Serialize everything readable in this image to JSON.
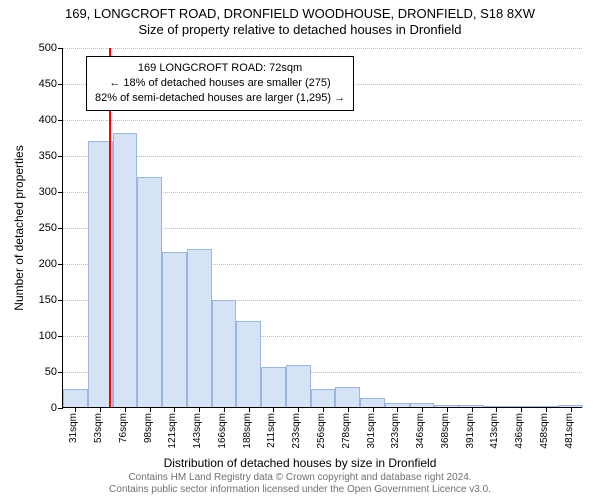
{
  "title_line1": "169, LONGCROFT ROAD, DRONFIELD WOODHOUSE, DRONFIELD, S18 8XW",
  "title_line2": "Size of property relative to detached houses in Dronfield",
  "y_axis_label": "Number of detached properties",
  "x_axis_label": "Distribution of detached houses by size in Dronfield",
  "footnote_line1": "Contains HM Land Registry data © Crown copyright and database right 2024.",
  "footnote_line2": "Contains public sector information licensed under the Open Government Licence v3.0.",
  "chart": {
    "type": "histogram",
    "ylim": [
      0,
      500
    ],
    "ytick_step": 50,
    "y_ticks": [
      0,
      50,
      100,
      150,
      200,
      250,
      300,
      350,
      400,
      450,
      500
    ],
    "x_tick_labels": [
      "31sqm",
      "53sqm",
      "76sqm",
      "98sqm",
      "121sqm",
      "143sqm",
      "166sqm",
      "188sqm",
      "211sqm",
      "233sqm",
      "256sqm",
      "278sqm",
      "301sqm",
      "323sqm",
      "346sqm",
      "368sqm",
      "391sqm",
      "413sqm",
      "436sqm",
      "458sqm",
      "481sqm"
    ],
    "values": [
      25,
      370,
      380,
      320,
      215,
      220,
      148,
      120,
      55,
      58,
      25,
      28,
      12,
      6,
      6,
      3,
      3,
      0,
      0,
      0,
      3
    ],
    "bar_fill": "#d6e2f5",
    "bar_stroke": "#9cb6de",
    "grid_color": "#bfbfbf",
    "background_color": "#ffffff",
    "bar_width_ratio": 1.0,
    "marker": {
      "bin_index": 1,
      "fraction_in_bin": 0.86,
      "color": "#ff0000"
    }
  },
  "annotation": {
    "line1": "169 LONGCROFT ROAD: 72sqm",
    "line2": "← 18% of detached houses are smaller (275)",
    "line3": "82% of semi-detached houses are larger (1,295) →"
  }
}
